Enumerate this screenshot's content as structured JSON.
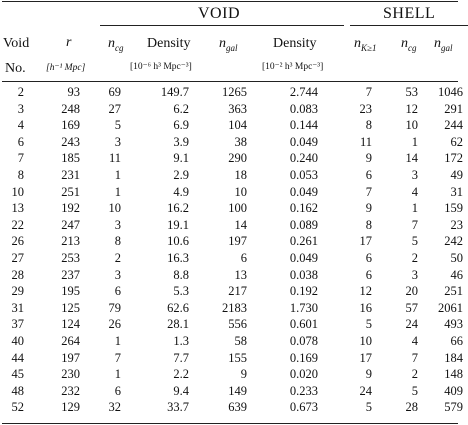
{
  "header": {
    "void_group": "VOID",
    "shell_group": "SHELL",
    "void_col": "Void",
    "void_no": "No.",
    "r_sym": "r",
    "r_unit": "[h⁻¹ Mpc]",
    "ncg_sym": "n",
    "ncg_sub": "cg",
    "density_label": "Density",
    "density_cg_unit": "[10⁻⁶ h³ Mpc⁻³]",
    "ngal_sym": "n",
    "ngal_sub": "gal",
    "density_gal_unit": "[10⁻² h³ Mpc⁻³]",
    "nk_sym": "n",
    "nk_sub": "K≥1",
    "shell_ncg_sub": "cg",
    "shell_ngal_sub": "gal"
  },
  "rows": [
    [
      "2",
      "93",
      "69",
      "149.7",
      "1265",
      "2.744",
      "7",
      "53",
      "1046"
    ],
    [
      "3",
      "248",
      "27",
      "6.2",
      "363",
      "0.083",
      "23",
      "12",
      "291"
    ],
    [
      "4",
      "169",
      "5",
      "6.9",
      "104",
      "0.144",
      "8",
      "10",
      "244"
    ],
    [
      "6",
      "243",
      "3",
      "3.9",
      "38",
      "0.049",
      "11",
      "1",
      "62"
    ],
    [
      "7",
      "185",
      "11",
      "9.1",
      "290",
      "0.240",
      "9",
      "14",
      "172"
    ],
    [
      "8",
      "231",
      "1",
      "2.9",
      "18",
      "0.053",
      "6",
      "3",
      "49"
    ],
    [
      "10",
      "251",
      "1",
      "4.9",
      "10",
      "0.049",
      "7",
      "4",
      "31"
    ],
    [
      "13",
      "192",
      "10",
      "16.2",
      "100",
      "0.162",
      "9",
      "1",
      "159"
    ],
    [
      "22",
      "247",
      "3",
      "19.1",
      "14",
      "0.089",
      "8",
      "7",
      "23"
    ],
    [
      "26",
      "213",
      "8",
      "10.6",
      "197",
      "0.261",
      "17",
      "5",
      "242"
    ],
    [
      "27",
      "253",
      "2",
      "16.3",
      "6",
      "0.049",
      "6",
      "2",
      "50"
    ],
    [
      "28",
      "237",
      "3",
      "8.8",
      "13",
      "0.038",
      "6",
      "3",
      "46"
    ],
    [
      "29",
      "195",
      "6",
      "5.3",
      "217",
      "0.192",
      "12",
      "20",
      "251"
    ],
    [
      "31",
      "125",
      "79",
      "62.6",
      "2183",
      "1.730",
      "16",
      "57",
      "2061"
    ],
    [
      "37",
      "124",
      "26",
      "28.1",
      "556",
      "0.601",
      "5",
      "24",
      "493"
    ],
    [
      "40",
      "264",
      "1",
      "1.3",
      "58",
      "0.078",
      "10",
      "4",
      "66"
    ],
    [
      "44",
      "197",
      "7",
      "7.7",
      "155",
      "0.169",
      "17",
      "7",
      "184"
    ],
    [
      "45",
      "230",
      "1",
      "2.2",
      "9",
      "0.020",
      "9",
      "2",
      "148"
    ],
    [
      "48",
      "232",
      "6",
      "9.4",
      "149",
      "0.233",
      "24",
      "5",
      "409"
    ],
    [
      "52",
      "129",
      "32",
      "33.7",
      "639",
      "0.673",
      "5",
      "28",
      "579"
    ]
  ]
}
